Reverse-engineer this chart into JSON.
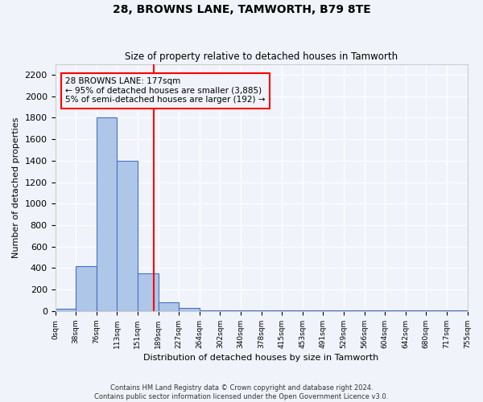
{
  "title": "28, BROWNS LANE, TAMWORTH, B79 8TE",
  "subtitle": "Size of property relative to detached houses in Tamworth",
  "xlabel": "Distribution of detached houses by size in Tamworth",
  "ylabel": "Number of detached properties",
  "bin_labels": [
    "0sqm",
    "38sqm",
    "76sqm",
    "113sqm",
    "151sqm",
    "189sqm",
    "227sqm",
    "264sqm",
    "302sqm",
    "340sqm",
    "378sqm",
    "415sqm",
    "453sqm",
    "491sqm",
    "529sqm",
    "566sqm",
    "604sqm",
    "642sqm",
    "680sqm",
    "717sqm",
    "755sqm"
  ],
  "bar_values": [
    20,
    420,
    1800,
    1400,
    350,
    80,
    30,
    5,
    5,
    5,
    5,
    5,
    5,
    5,
    5,
    5,
    5,
    5,
    5,
    5
  ],
  "bar_color": "#aec6e8",
  "bar_edge_color": "#4472c4",
  "red_line_x": 4.77,
  "annotation_text": "28 BROWNS LANE: 177sqm\n← 95% of detached houses are smaller (3,885)\n5% of semi-detached houses are larger (192) →",
  "annotation_box_color": "#ff0000",
  "ylim": [
    0,
    2300
  ],
  "yticks": [
    0,
    200,
    400,
    600,
    800,
    1000,
    1200,
    1400,
    1600,
    1800,
    2000,
    2200
  ],
  "background_color": "#f0f4fa",
  "grid_color": "#ffffff",
  "footer_line1": "Contains HM Land Registry data © Crown copyright and database right 2024.",
  "footer_line2": "Contains public sector information licensed under the Open Government Licence v3.0."
}
